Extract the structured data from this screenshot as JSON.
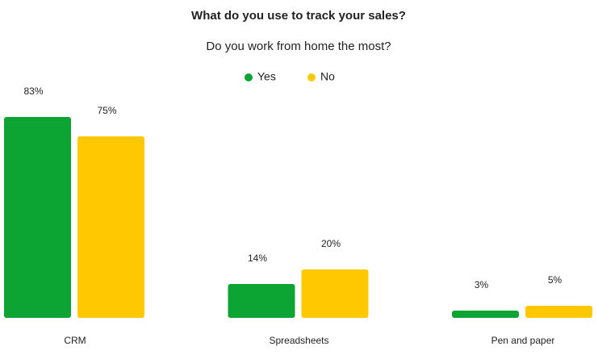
{
  "chart_data": {
    "type": "bar",
    "title": "What do you use to track your sales?",
    "subtitle": "Do you work from home the most?",
    "categories": [
      "CRM",
      "Spreadsheets",
      "Pen and paper"
    ],
    "series": [
      {
        "name": "Yes",
        "color": "#0ca533",
        "values": [
          83,
          14,
          3
        ],
        "value_labels": [
          "83%",
          "14%",
          "3%"
        ]
      },
      {
        "name": "No",
        "color": "#ffc800",
        "values": [
          75,
          20,
          5
        ],
        "value_labels": [
          "75%",
          "20%",
          "5%"
        ]
      }
    ]
  }
}
